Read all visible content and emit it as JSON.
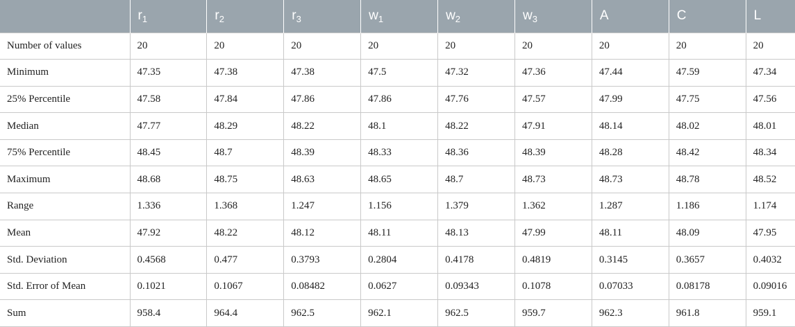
{
  "columns": [
    {
      "base": "",
      "sub": ""
    },
    {
      "base": "r",
      "sub": "1"
    },
    {
      "base": "r",
      "sub": "2"
    },
    {
      "base": "r",
      "sub": "3"
    },
    {
      "base": "w",
      "sub": "1"
    },
    {
      "base": "w",
      "sub": "2"
    },
    {
      "base": "w",
      "sub": "3"
    },
    {
      "base": "A",
      "sub": ""
    },
    {
      "base": "C",
      "sub": ""
    },
    {
      "base": "L",
      "sub": ""
    }
  ],
  "rows": [
    [
      "Number of values",
      "20",
      "20",
      "20",
      "20",
      "20",
      "20",
      "20",
      "20",
      "20"
    ],
    [
      "Minimum",
      "47.35",
      "47.38",
      "47.38",
      "47.5",
      "47.32",
      "47.36",
      "47.44",
      "47.59",
      "47.34"
    ],
    [
      "25% Percentile",
      "47.58",
      "47.84",
      "47.86",
      "47.86",
      "47.76",
      "47.57",
      "47.99",
      "47.75",
      "47.56"
    ],
    [
      "Median",
      "47.77",
      "48.29",
      "48.22",
      "48.1",
      "48.22",
      "47.91",
      "48.14",
      "48.02",
      "48.01"
    ],
    [
      "75% Percentile",
      "48.45",
      "48.7",
      "48.39",
      "48.33",
      "48.36",
      "48.39",
      "48.28",
      "48.42",
      "48.34"
    ],
    [
      "Maximum",
      "48.68",
      "48.75",
      "48.63",
      "48.65",
      "48.7",
      "48.73",
      "48.73",
      "48.78",
      "48.52"
    ],
    [
      "Range",
      "1.336",
      "1.368",
      "1.247",
      "1.156",
      "1.379",
      "1.362",
      "1.287",
      "1.186",
      "1.174"
    ],
    [
      "Mean",
      "47.92",
      "48.22",
      "48.12",
      "48.11",
      "48.13",
      "47.99",
      "48.11",
      "48.09",
      "47.95"
    ],
    [
      "Std. Deviation",
      "0.4568",
      "0.477",
      "0.3793",
      "0.2804",
      "0.4178",
      "0.4819",
      "0.3145",
      "0.3657",
      "0.4032"
    ],
    [
      "Std. Error of Mean",
      "0.1021",
      "0.1067",
      "0.08482",
      "0.0627",
      "0.09343",
      "0.1078",
      "0.07033",
      "0.08178",
      "0.09016"
    ],
    [
      "Sum",
      "958.4",
      "964.4",
      "962.5",
      "962.1",
      "962.5",
      "959.7",
      "962.3",
      "961.8",
      "959.1"
    ]
  ]
}
